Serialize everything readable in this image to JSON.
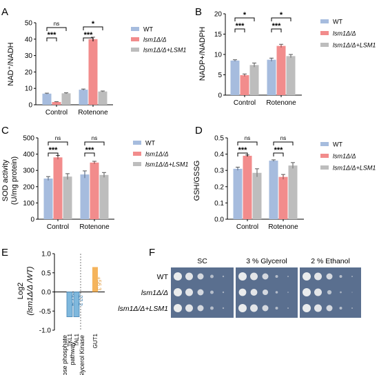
{
  "colors": {
    "wt": "#a6bcde",
    "lsm1": "#f28c8c",
    "rescue": "#bdbdbd",
    "tal1": "#7fb8dd",
    "gut1": "#f5b45c",
    "plate": "#5a6f8f"
  },
  "legend": [
    "WT",
    "lsm1Δ/Δ",
    "lsm1Δ/Δ+LSM1"
  ],
  "panels": {
    "A": {
      "letter": "A",
      "ylabel": "NAD⁺/NADH"
    },
    "B": {
      "letter": "B",
      "ylabel": "NADP+/NADPH"
    },
    "C": {
      "letter": "C",
      "ylabel": "SOD activity",
      "ylabel2": "(U/mg protein)"
    },
    "D": {
      "letter": "D",
      "ylabel": "GSH/GSSG"
    },
    "E": {
      "letter": "E",
      "ylabel": "Log2",
      "ylabel2": "(lsm1Δ/Δ /WT)"
    },
    "F": {
      "letter": "F"
    }
  },
  "chart_data": [
    {
      "panel": "A",
      "type": "bar",
      "categories": [
        "Control",
        "Rotenone"
      ],
      "ylim": [
        0,
        50
      ],
      "yticks": [
        0,
        10,
        20,
        30,
        40,
        50
      ],
      "series": [
        {
          "name": "WT",
          "values": [
            6.8,
            9.2
          ],
          "errors": [
            0.3,
            0.4
          ]
        },
        {
          "name": "lsm1Δ/Δ",
          "values": [
            1.7,
            40.0
          ],
          "errors": [
            0.2,
            1.2
          ]
        },
        {
          "name": "lsm1Δ/Δ+LSM1",
          "values": [
            7.0,
            8.1
          ],
          "errors": [
            0.3,
            0.3
          ]
        }
      ],
      "significance": [
        {
          "group": 0,
          "pairs": [
            [
              "***",
              0,
              1
            ],
            [
              "ns",
              0,
              2
            ]
          ]
        },
        {
          "group": 1,
          "pairs": [
            [
              "***",
              0,
              1
            ],
            [
              "*",
              0,
              2
            ]
          ]
        }
      ]
    },
    {
      "panel": "B",
      "type": "bar",
      "categories": [
        "Control",
        "Rotenone"
      ],
      "ylim": [
        0,
        20
      ],
      "yticks": [
        0,
        5,
        10,
        15,
        20
      ],
      "series": [
        {
          "name": "WT",
          "values": [
            8.5,
            8.7
          ],
          "errors": [
            0.2,
            0.4
          ]
        },
        {
          "name": "lsm1Δ/Δ",
          "values": [
            4.9,
            12.1
          ],
          "errors": [
            0.3,
            0.4
          ]
        },
        {
          "name": "lsm1Δ/Δ+LSM1",
          "values": [
            7.4,
            9.6
          ],
          "errors": [
            0.5,
            0.4
          ]
        }
      ],
      "significance": [
        {
          "group": 0,
          "pairs": [
            [
              "***",
              0,
              1
            ],
            [
              "*",
              0,
              2
            ]
          ]
        },
        {
          "group": 1,
          "pairs": [
            [
              "***",
              0,
              1
            ],
            [
              "*",
              0,
              2
            ]
          ]
        }
      ]
    },
    {
      "panel": "C",
      "type": "bar",
      "categories": [
        "Control",
        "Rotenone"
      ],
      "ylim": [
        0,
        500
      ],
      "yticks": [
        0,
        100,
        200,
        300,
        400,
        500
      ],
      "series": [
        {
          "name": "WT",
          "values": [
            250,
            275
          ],
          "errors": [
            12,
            22
          ]
        },
        {
          "name": "lsm1Δ/Δ",
          "values": [
            380,
            348
          ],
          "errors": [
            12,
            8
          ]
        },
        {
          "name": "lsm1Δ/Δ+LSM1",
          "values": [
            262,
            272
          ],
          "errors": [
            18,
            15
          ]
        }
      ],
      "significance": [
        {
          "group": 0,
          "pairs": [
            [
              "***",
              0,
              1
            ],
            [
              "ns",
              0,
              2
            ]
          ]
        },
        {
          "group": 1,
          "pairs": [
            [
              "***",
              0,
              1
            ],
            [
              "ns",
              0,
              2
            ]
          ]
        }
      ]
    },
    {
      "panel": "D",
      "type": "bar",
      "categories": [
        "Control",
        "Rotenone"
      ],
      "ylim": [
        0,
        0.5
      ],
      "yticks": [
        0.0,
        0.1,
        0.2,
        0.3,
        0.4,
        0.5
      ],
      "series": [
        {
          "name": "WT",
          "values": [
            0.31,
            0.36
          ],
          "errors": [
            0.01,
            0.005
          ]
        },
        {
          "name": "lsm1Δ/Δ",
          "values": [
            0.39,
            0.26
          ],
          "errors": [
            0.005,
            0.015
          ]
        },
        {
          "name": "lsm1Δ/Δ+LSM1",
          "values": [
            0.285,
            0.33
          ],
          "errors": [
            0.025,
            0.018
          ]
        }
      ],
      "significance": [
        {
          "group": 0,
          "pairs": [
            [
              "***",
              0,
              1
            ],
            [
              "ns",
              0,
              2
            ]
          ]
        },
        {
          "group": 1,
          "pairs": [
            [
              "***",
              0,
              1
            ],
            [
              "ns",
              0,
              2
            ]
          ]
        }
      ]
    },
    {
      "panel": "E",
      "type": "bar",
      "ylim": [
        -1.0,
        1.0
      ],
      "yticks": [
        -1.0,
        -0.5,
        0.0,
        0.5,
        1.0
      ],
      "groups": [
        "Pentose phosphate pathway",
        "Glycerol Kinase"
      ],
      "bars": [
        {
          "gene": "TKL1",
          "value": -0.65,
          "label": "-27.4",
          "group": 0
        },
        {
          "gene": "TAL1",
          "value": -0.65,
          "label": "-27.2",
          "group": 0
        },
        {
          "gene": "GUT1",
          "value": 0.65,
          "label": "+56.3",
          "group": 1
        }
      ]
    }
  ],
  "spot_assay": {
    "conditions": [
      "SC",
      "3 % Glycerol",
      "2 % Ethanol"
    ],
    "strains": [
      "WT",
      "lsm1Δ/Δ",
      "lsm1Δ/Δ+LSM1"
    ]
  }
}
